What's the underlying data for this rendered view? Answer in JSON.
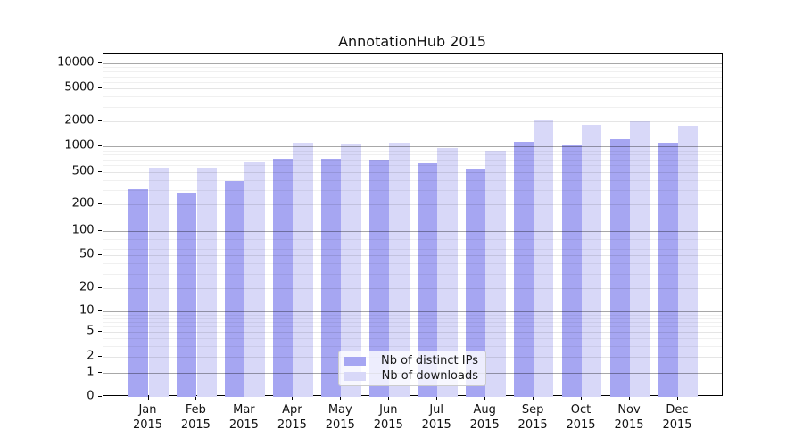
{
  "title": "AnnotationHub 2015",
  "legend": {
    "items": [
      {
        "label": "Nb of distinct IPs",
        "color": "#a6a6f2"
      },
      {
        "label": "Nb of downloads",
        "color": "#d8d8f8"
      }
    ]
  },
  "y_axis": {
    "tick_labels": [
      "0",
      "1",
      "2",
      "5",
      "10",
      "20",
      "50",
      "100",
      "200",
      "500",
      "1000",
      "2000",
      "5000",
      "10000"
    ]
  },
  "x_axis": {
    "months": [
      "Jan",
      "Feb",
      "Mar",
      "Apr",
      "May",
      "Jun",
      "Jul",
      "Aug",
      "Sep",
      "Oct",
      "Nov",
      "Dec"
    ],
    "year": "2015"
  },
  "chart_data": {
    "type": "bar",
    "title": "AnnotationHub 2015",
    "categories": [
      "Jan 2015",
      "Feb 2015",
      "Mar 2015",
      "Apr 2015",
      "May 2015",
      "Jun 2015",
      "Jul 2015",
      "Aug 2015",
      "Sep 2015",
      "Oct 2015",
      "Nov 2015",
      "Dec 2015"
    ],
    "series": [
      {
        "name": "Nb of distinct IPs",
        "color": "#a6a6f2",
        "values": [
          310,
          280,
          385,
          715,
          710,
          695,
          630,
          550,
          1140,
          1060,
          1215,
          1110
        ]
      },
      {
        "name": "Nb of downloads",
        "color": "#d8d8f8",
        "values": [
          560,
          560,
          650,
          1100,
          1085,
          1110,
          950,
          890,
          2050,
          1810,
          2000,
          1770
        ]
      }
    ],
    "xlabel": "",
    "ylabel": "",
    "yscale": "symlog",
    "y_ticks": [
      0,
      1,
      2,
      5,
      10,
      20,
      50,
      100,
      200,
      500,
      1000,
      2000,
      5000,
      10000
    ],
    "ylim": [
      0,
      14000
    ],
    "grid": true,
    "legend_position": "lower center"
  }
}
